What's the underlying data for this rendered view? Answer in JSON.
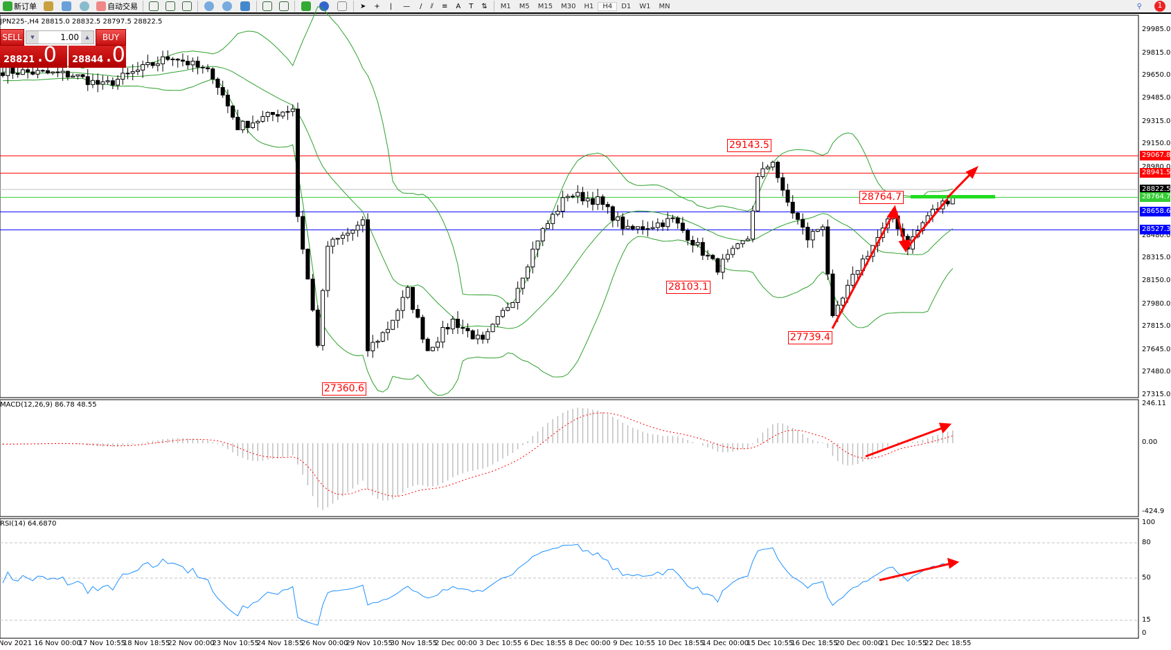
{
  "toolbar": {
    "new_order": "新订单",
    "auto_trade": "自动交易",
    "timeframes": [
      "M1",
      "M5",
      "M15",
      "M30",
      "H1",
      "H4",
      "D1",
      "W1",
      "MN"
    ],
    "active_timeframe": "H4",
    "notification_count": "1"
  },
  "symbol_info": "JPN225-,H4  28815.0 28832.5 28797.5 28822.5",
  "trade_panel": {
    "sell_label": "SELL",
    "buy_label": "BUY",
    "lot": "1.00",
    "sell_price_main": "28821",
    "sell_price_frac": ".0",
    "buy_price_main": "28844",
    "buy_price_frac": ".0"
  },
  "price_axis": [
    "29985.0",
    "29815.0",
    "29650.0",
    "29485.0",
    "29315.0",
    "29150.0",
    "28980.0",
    "28480.0",
    "28315.0",
    "28150.0",
    "27980.0",
    "27815.0",
    "27645.0",
    "27480.0",
    "27315.0"
  ],
  "levels": [
    {
      "price": "29067.8",
      "color": "#ff0000"
    },
    {
      "price": "28941.5",
      "color": "#ff0000"
    },
    {
      "price": "28822.5",
      "color": "#000000",
      "line": "#c0c0c0"
    },
    {
      "price": "28764.7",
      "color": "#33cc33"
    },
    {
      "price": "28658.6",
      "color": "#0000ff"
    },
    {
      "price": "28527.3",
      "color": "#0000ff"
    }
  ],
  "price_labels": [
    "29143.5",
    "28764.7",
    "28103.1",
    "27739.4",
    "27360.6"
  ],
  "close_path": [
    [
      0,
      29690
    ],
    [
      14,
      29660
    ],
    [
      20,
      29580
    ],
    [
      34,
      29800
    ],
    [
      42,
      29660
    ],
    [
      47,
      29280
    ],
    [
      58,
      29420
    ],
    [
      59,
      28630
    ],
    [
      63,
      27700
    ],
    [
      65,
      28410
    ],
    [
      72,
      28570
    ],
    [
      73,
      27650
    ],
    [
      77,
      27810
    ],
    [
      81,
      28080
    ],
    [
      85,
      27650
    ],
    [
      90,
      27865
    ],
    [
      96,
      27700
    ],
    [
      102,
      28030
    ],
    [
      107,
      28465
    ],
    [
      113,
      28790
    ],
    [
      119,
      28740
    ],
    [
      125,
      28520
    ],
    [
      134,
      28600
    ],
    [
      143,
      28250
    ],
    [
      149,
      28465
    ],
    [
      151,
      28900
    ],
    [
      154,
      29040
    ],
    [
      156,
      28790
    ],
    [
      161,
      28465
    ],
    [
      164,
      28570
    ],
    [
      166,
      27865
    ],
    [
      171,
      28250
    ],
    [
      178,
      28630
    ],
    [
      181,
      28410
    ],
    [
      185,
      28630
    ],
    [
      190,
      28780
    ]
  ],
  "macd": {
    "title": "MACD(12,26,9) 86.78 48.55",
    "axis": [
      "246.11",
      "0.00",
      "-424.9"
    ]
  },
  "rsi": {
    "title": "RSI(14) 64.6870",
    "axis": [
      "100",
      "80",
      "50",
      "15",
      "0"
    ]
  },
  "time_axis": [
    "Nov 2021",
    "16 Nov 00:00",
    "17 Nov 10:55",
    "18 Nov 18:55",
    "22 Nov 00:00",
    "23 Nov 10:55",
    "24 Nov 18:55",
    "26 Nov 00:00",
    "29 Nov 10:55",
    "30 Nov 18:55",
    "2 Dec 00:00",
    "3 Dec 10:55",
    "6 Dec 18:55",
    "8 Dec 00:00",
    "9 Dec 10:55",
    "10 Dec 18:55",
    "14 Dec 00:00",
    "15 Dec 10:55",
    "16 Dec 18:55",
    "20 Dec 00:00",
    "21 Dec 10:55",
    "22 Dec 18:55"
  ],
  "colors": {
    "bands": "#2ca02c",
    "annotation": "#ff0000",
    "rsi_line": "#1e90ff",
    "macd_signal": "#ff0000",
    "macd_hist": "#c0c0c0"
  }
}
